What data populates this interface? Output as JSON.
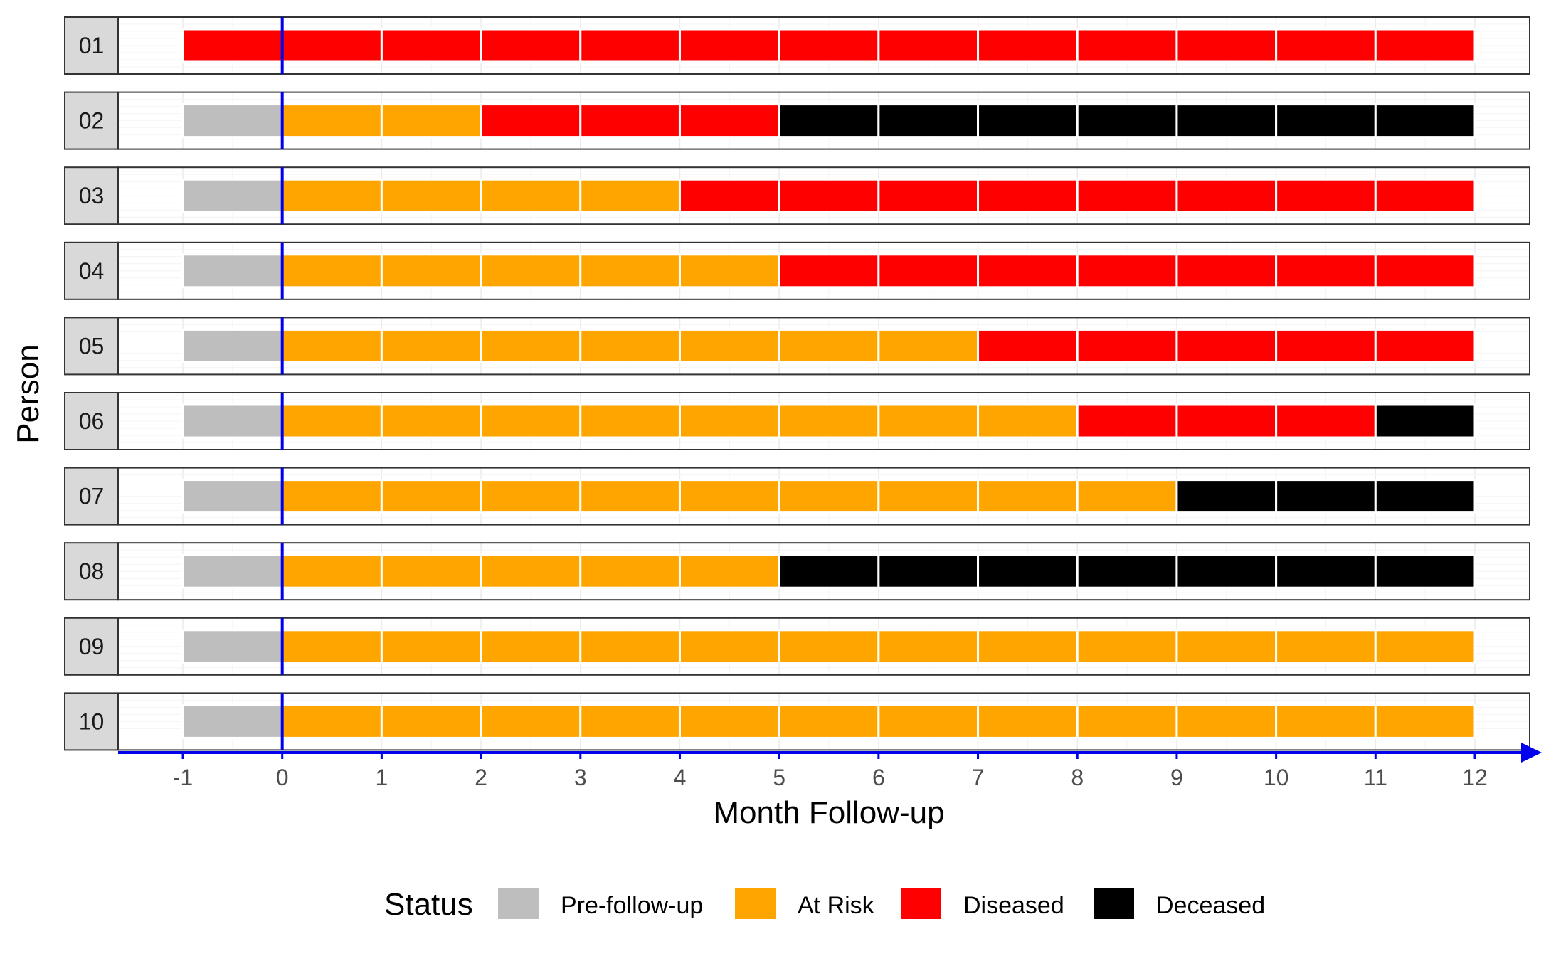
{
  "chart_data": {
    "type": "bar",
    "subtype": "faceted swimmer / timeline plot",
    "xlabel": "Month Follow-up",
    "ylabel": "Person",
    "xlim": [
      -1,
      12
    ],
    "x_ticks": [
      "-1",
      "0",
      "1",
      "2",
      "3",
      "4",
      "5",
      "6",
      "7",
      "8",
      "9",
      "10",
      "11",
      "12"
    ],
    "reference_line_x": 0,
    "grid": true,
    "legend": {
      "title": "Status",
      "position": "bottom",
      "entries": [
        {
          "key": "pre",
          "label": "Pre-follow-up",
          "color": "#bebebe"
        },
        {
          "key": "risk",
          "label": "At Risk",
          "color": "#ffa500"
        },
        {
          "key": "diseased",
          "label": "Diseased",
          "color": "#ff0000"
        },
        {
          "key": "deceased",
          "label": "Deceased",
          "color": "#000000"
        }
      ]
    },
    "colors": {
      "axis_accent": "#0000ee"
    },
    "persons": [
      {
        "id": "01",
        "segments": [
          {
            "start": -1,
            "end": 12,
            "status": "diseased"
          }
        ]
      },
      {
        "id": "02",
        "segments": [
          {
            "start": -1,
            "end": 0,
            "status": "pre"
          },
          {
            "start": 0,
            "end": 2,
            "status": "risk"
          },
          {
            "start": 2,
            "end": 5,
            "status": "diseased"
          },
          {
            "start": 5,
            "end": 12,
            "status": "deceased"
          }
        ]
      },
      {
        "id": "03",
        "segments": [
          {
            "start": -1,
            "end": 0,
            "status": "pre"
          },
          {
            "start": 0,
            "end": 4,
            "status": "risk"
          },
          {
            "start": 4,
            "end": 12,
            "status": "diseased"
          }
        ]
      },
      {
        "id": "04",
        "segments": [
          {
            "start": -1,
            "end": 0,
            "status": "pre"
          },
          {
            "start": 0,
            "end": 5,
            "status": "risk"
          },
          {
            "start": 5,
            "end": 12,
            "status": "diseased"
          }
        ]
      },
      {
        "id": "05",
        "segments": [
          {
            "start": -1,
            "end": 0,
            "status": "pre"
          },
          {
            "start": 0,
            "end": 7,
            "status": "risk"
          },
          {
            "start": 7,
            "end": 12,
            "status": "diseased"
          }
        ]
      },
      {
        "id": "06",
        "segments": [
          {
            "start": -1,
            "end": 0,
            "status": "pre"
          },
          {
            "start": 0,
            "end": 8,
            "status": "risk"
          },
          {
            "start": 8,
            "end": 11,
            "status": "diseased"
          },
          {
            "start": 11,
            "end": 12,
            "status": "deceased"
          }
        ]
      },
      {
        "id": "07",
        "segments": [
          {
            "start": -1,
            "end": 0,
            "status": "pre"
          },
          {
            "start": 0,
            "end": 9,
            "status": "risk"
          },
          {
            "start": 9,
            "end": 12,
            "status": "deceased"
          }
        ]
      },
      {
        "id": "08",
        "segments": [
          {
            "start": -1,
            "end": 0,
            "status": "pre"
          },
          {
            "start": 0,
            "end": 5,
            "status": "risk"
          },
          {
            "start": 5,
            "end": 12,
            "status": "deceased"
          }
        ]
      },
      {
        "id": "09",
        "segments": [
          {
            "start": -1,
            "end": 0,
            "status": "pre"
          },
          {
            "start": 0,
            "end": 12,
            "status": "risk"
          }
        ]
      },
      {
        "id": "10",
        "segments": [
          {
            "start": -1,
            "end": 0,
            "status": "pre"
          },
          {
            "start": 0,
            "end": 12,
            "status": "risk"
          }
        ]
      }
    ]
  }
}
